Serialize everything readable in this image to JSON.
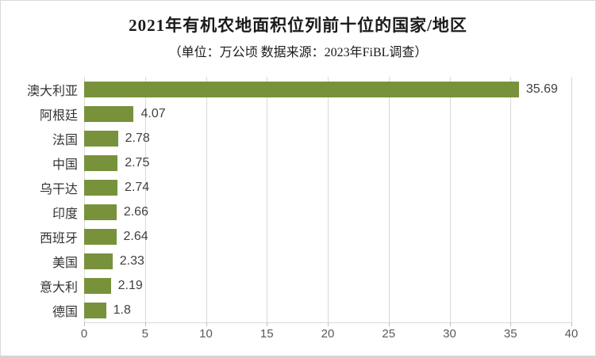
{
  "header": {
    "title": "2021年有机农地面积位列前十位的国家/地区",
    "subtitle": "（单位：万公顷 数据来源：2023年FiBL调查）"
  },
  "chart_data": {
    "type": "bar",
    "orientation": "horizontal",
    "title": "2021年有机农地面积位列前十位的国家/地区",
    "subtitle": "（单位：万公顷 数据来源：2023年FiBL调查）",
    "unit": "万公顷",
    "source": "2023年FiBL调查",
    "categories": [
      "澳大利亚",
      "阿根廷",
      "法国",
      "中国",
      "乌干达",
      "印度",
      "西班牙",
      "美国",
      "意大利",
      "德国"
    ],
    "values": [
      35.69,
      4.07,
      2.78,
      2.75,
      2.74,
      2.66,
      2.64,
      2.33,
      2.19,
      1.8
    ],
    "value_labels": [
      "35.69",
      "4.07",
      "2.78",
      "2.75",
      "2.74",
      "2.66",
      "2.64",
      "2.33",
      "2.19",
      "1.8"
    ],
    "x_ticks": [
      0,
      5,
      10,
      15,
      20,
      25,
      30,
      35,
      40
    ],
    "xlim": [
      0,
      40
    ],
    "grid": true,
    "legend": false,
    "bar_color": "#78923c",
    "gridline_color": "#d9d9d9",
    "tick_color": "#bfbfbf",
    "axis_label_color": "#595959",
    "category_label_color": "#333333",
    "value_label_color": "#404040"
  }
}
